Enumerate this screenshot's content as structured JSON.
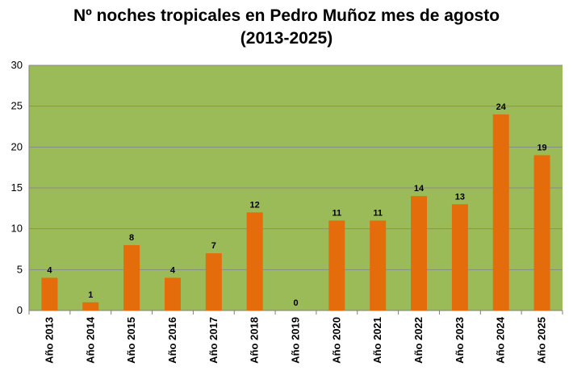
{
  "chart_data": {
    "type": "bar",
    "title_lines": [
      "Nº noches tropicales en Pedro Muñoz mes de agosto",
      "(2013-2025)"
    ],
    "categories": [
      "Año 2013",
      "Año 2014",
      "Año 2015",
      "Año 2016",
      "Año 2017",
      "Año 2018",
      "Año 2019",
      "Año 2020",
      "Año 2021",
      "Año 2022",
      "Año 2023",
      "Año 2024",
      "Año 2025"
    ],
    "values": [
      4,
      1,
      8,
      4,
      7,
      12,
      0,
      11,
      11,
      14,
      13,
      24,
      19
    ],
    "data_labels": [
      "4",
      "1",
      "8",
      "4",
      "7",
      "12",
      "0",
      "11",
      "11",
      "14",
      "13",
      "24",
      "19"
    ],
    "y_ticks": [
      "0",
      "5",
      "10",
      "15",
      "20",
      "25",
      "30"
    ],
    "ylim": [
      0,
      30
    ],
    "xlabel": "",
    "ylabel": "",
    "grid": true,
    "legend": "none",
    "colors": {
      "bar": "#E46C0A",
      "plot_background": "#9BBB59",
      "gridline": "#8A8A8A",
      "text": "#000000"
    }
  }
}
